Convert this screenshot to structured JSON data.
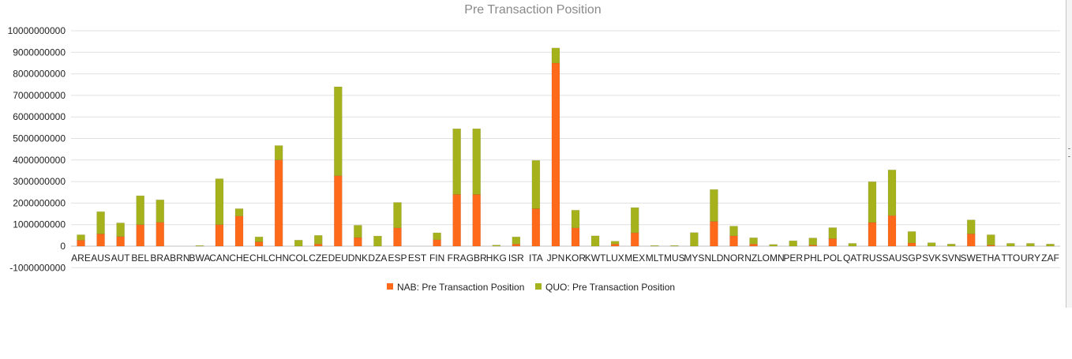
{
  "colors": {
    "nab": "#ff6a1a",
    "quo": "#a6b21c",
    "grid": "#e0e0e0",
    "axis": "#c0c0c0",
    "title": "#8a8a8a"
  },
  "chart_data": {
    "type": "bar",
    "stacked": true,
    "title": "Pre Transaction Position",
    "xlabel": "",
    "ylabel": "",
    "ylim": [
      -1000000000,
      10000000000
    ],
    "yticks": [
      10000000000,
      9000000000,
      8000000000,
      7000000000,
      6000000000,
      5000000000,
      4000000000,
      3000000000,
      2000000000,
      1000000000,
      0,
      -1000000000
    ],
    "ytick_labels": [
      "10000000000",
      "9000000000",
      "8000000000",
      "7000000000",
      "6000000000",
      "5000000000",
      "4000000000",
      "3000000000",
      "2000000000",
      "1000000000",
      "0",
      "-1000000000"
    ],
    "grid": true,
    "legend_position": "bottom-center",
    "categories": [
      "ARE",
      "AUS",
      "AUT",
      "BEL",
      "BRA",
      "BRN",
      "BWA",
      "CAN",
      "CHE",
      "CHL",
      "CHN",
      "COL",
      "CZE",
      "DEU",
      "DNK",
      "DZA",
      "ESP",
      "EST",
      "FIN",
      "FRA",
      "GBR",
      "HKG",
      "ISR",
      "ITA",
      "JPN",
      "KOR",
      "KWT",
      "LUX",
      "MEX",
      "MLT",
      "MUS",
      "MYS",
      "NLD",
      "NOR",
      "NZL",
      "OMN",
      "PER",
      "PHL",
      "POL",
      "QAT",
      "RUS",
      "SAU",
      "SGP",
      "SVK",
      "SVN",
      "SWE",
      "THA",
      "TTO",
      "URY",
      "ZAF"
    ],
    "series": [
      {
        "name": "NAB: Pre Transaction Position",
        "values": [
          280000000,
          570000000,
          450000000,
          1000000000,
          1110000000,
          0,
          0,
          1000000000,
          1400000000,
          200000000,
          4000000000,
          0,
          100000000,
          3270000000,
          400000000,
          0,
          850000000,
          0,
          300000000,
          2400000000,
          2400000000,
          0,
          100000000,
          1740000000,
          8500000000,
          850000000,
          0,
          100000000,
          620000000,
          0,
          0,
          0,
          1150000000,
          480000000,
          100000000,
          0,
          0,
          50000000,
          350000000,
          0,
          1100000000,
          1420000000,
          150000000,
          0,
          0,
          570000000,
          50000000,
          0,
          0,
          0
        ]
      },
      {
        "name": "QUO: Pre Transaction Position",
        "values": [
          250000000,
          1030000000,
          630000000,
          1340000000,
          1040000000,
          0,
          30000000,
          2130000000,
          340000000,
          230000000,
          670000000,
          280000000,
          400000000,
          4130000000,
          570000000,
          470000000,
          1180000000,
          0,
          320000000,
          3050000000,
          3050000000,
          50000000,
          330000000,
          2240000000,
          700000000,
          820000000,
          480000000,
          130000000,
          1170000000,
          30000000,
          30000000,
          630000000,
          1480000000,
          450000000,
          290000000,
          80000000,
          250000000,
          330000000,
          510000000,
          130000000,
          1890000000,
          2120000000,
          530000000,
          160000000,
          100000000,
          650000000,
          480000000,
          130000000,
          130000000,
          100000000
        ]
      }
    ]
  }
}
